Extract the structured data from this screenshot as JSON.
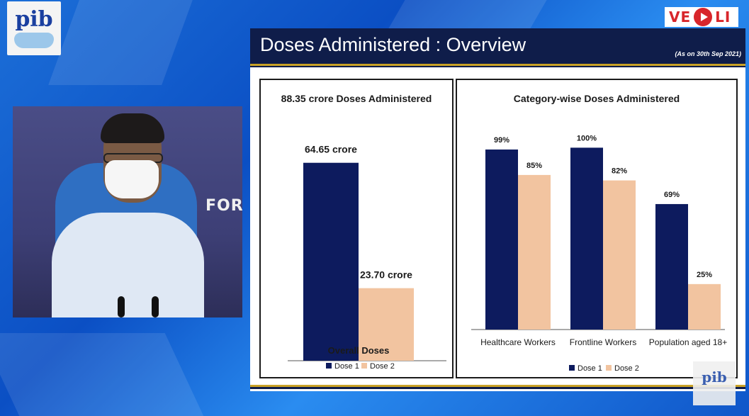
{
  "logo": {
    "text": "pib"
  },
  "live_badge": {
    "text_left": "VE",
    "text_right": "LI"
  },
  "video": {
    "wall_text": "FORI"
  },
  "slide": {
    "title": "Doses Administered : Overview",
    "date_note": "(As on 30th Sep 2021)"
  },
  "chart_data": [
    {
      "type": "bar",
      "title": "88.35 crore Doses Administered",
      "categories": [
        "Overall Doses"
      ],
      "series": [
        {
          "name": "Dose 1",
          "values": [
            64.65
          ],
          "labels": [
            "64.65 crore"
          ],
          "color": "#0d1b5e"
        },
        {
          "name": "Dose 2",
          "values": [
            23.7
          ],
          "labels": [
            "23.70 crore"
          ],
          "color": "#f2c4a0"
        }
      ],
      "ylim": [
        0,
        75
      ],
      "legend": "bottom"
    },
    {
      "type": "bar",
      "title": "Category-wise Doses Administered",
      "categories": [
        "Healthcare Workers",
        "Frontline Workers",
        "Population aged 18+"
      ],
      "series": [
        {
          "name": "Dose 1",
          "values": [
            99,
            100,
            69
          ],
          "labels": [
            "99%",
            "100%",
            "69%"
          ],
          "color": "#0d1b5e"
        },
        {
          "name": "Dose 2",
          "values": [
            85,
            82,
            25
          ],
          "labels": [
            "85%",
            "82%",
            "25%"
          ],
          "color": "#f2c4a0"
        }
      ],
      "ylim": [
        0,
        106
      ],
      "legend": "bottom"
    }
  ],
  "watermark": {
    "text": "pib"
  }
}
